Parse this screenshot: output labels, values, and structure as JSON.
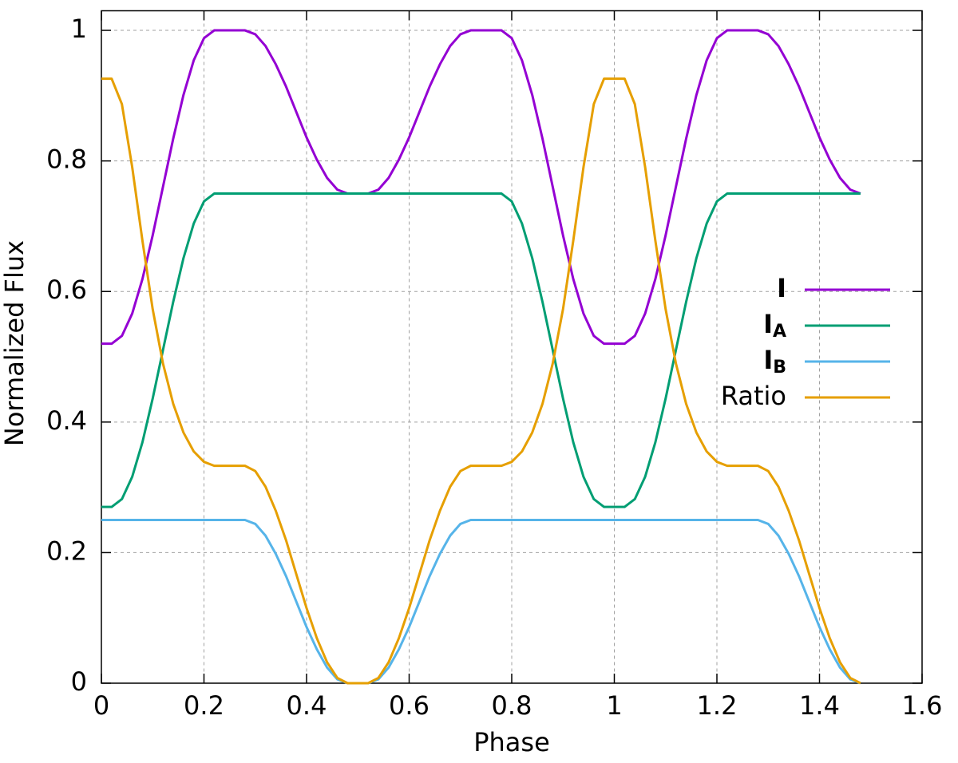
{
  "chart_data": {
    "type": "line",
    "xlabel": "Phase",
    "ylabel": "Normalized Flux",
    "xlim": [
      0,
      1.6
    ],
    "ylim": [
      0,
      1.03
    ],
    "xticks": [
      0,
      0.2,
      0.4,
      0.6,
      0.8,
      1,
      1.2,
      1.4,
      1.6
    ],
    "yticks": [
      0,
      0.2,
      0.4,
      0.6,
      0.8,
      1
    ],
    "grid": true,
    "legend": "right",
    "x": [
      0,
      0.02,
      0.04,
      0.06,
      0.08,
      0.1,
      0.12,
      0.14,
      0.16,
      0.18,
      0.2,
      0.22,
      0.24,
      0.26,
      0.28,
      0.3,
      0.32,
      0.34,
      0.36,
      0.38,
      0.4,
      0.42,
      0.44,
      0.46,
      0.48,
      0.5,
      0.52,
      0.54,
      0.56,
      0.58,
      0.6,
      0.62,
      0.64,
      0.66,
      0.68,
      0.7,
      0.72,
      0.74,
      0.76,
      0.78,
      0.8,
      0.82,
      0.84,
      0.86,
      0.88,
      0.9,
      0.92,
      0.94,
      0.96,
      0.98,
      1,
      1.02,
      1.04,
      1.06,
      1.08,
      1.1,
      1.12,
      1.14,
      1.16,
      1.18,
      1.2,
      1.22,
      1.24,
      1.26,
      1.28,
      1.3,
      1.32,
      1.34,
      1.36,
      1.38,
      1.4,
      1.42,
      1.44,
      1.46,
      1.48
    ],
    "series": [
      {
        "name": "I",
        "color": "#9400d3",
        "values": [
          0.52,
          0.52,
          0.532,
          0.566,
          0.619,
          0.686,
          0.76,
          0.834,
          0.901,
          0.954,
          0.988,
          1,
          1,
          1,
          1,
          0.994,
          0.976,
          0.948,
          0.914,
          0.875,
          0.836,
          0.802,
          0.774,
          0.756,
          0.75,
          0.75,
          0.75,
          0.756,
          0.774,
          0.802,
          0.836,
          0.875,
          0.914,
          0.948,
          0.976,
          0.994,
          1,
          1,
          1,
          1,
          0.988,
          0.954,
          0.901,
          0.834,
          0.76,
          0.686,
          0.619,
          0.566,
          0.532,
          0.52,
          0.52,
          0.52,
          0.532,
          0.566,
          0.619,
          0.686,
          0.76,
          0.834,
          0.901,
          0.954,
          0.988,
          1,
          1,
          1,
          1,
          0.994,
          0.976,
          0.948,
          0.914,
          0.875,
          0.836,
          0.802,
          0.774,
          0.756,
          0.75
        ]
      },
      {
        "name": "IA",
        "color": "#009e73",
        "values": [
          0.27,
          0.27,
          0.282,
          0.316,
          0.369,
          0.436,
          0.51,
          0.584,
          0.651,
          0.704,
          0.738,
          0.75,
          0.75,
          0.75,
          0.75,
          0.75,
          0.75,
          0.75,
          0.75,
          0.75,
          0.75,
          0.75,
          0.75,
          0.75,
          0.75,
          0.75,
          0.75,
          0.75,
          0.75,
          0.75,
          0.75,
          0.75,
          0.75,
          0.75,
          0.75,
          0.75,
          0.75,
          0.75,
          0.75,
          0.75,
          0.738,
          0.704,
          0.651,
          0.584,
          0.51,
          0.436,
          0.369,
          0.316,
          0.282,
          0.27,
          0.27,
          0.27,
          0.282,
          0.316,
          0.369,
          0.436,
          0.51,
          0.584,
          0.651,
          0.704,
          0.738,
          0.75,
          0.75,
          0.75,
          0.75,
          0.75,
          0.75,
          0.75,
          0.75,
          0.75,
          0.75,
          0.75,
          0.75,
          0.75,
          0.75
        ]
      },
      {
        "name": "IB",
        "color": "#56b4e9",
        "values": [
          0.25,
          0.25,
          0.25,
          0.25,
          0.25,
          0.25,
          0.25,
          0.25,
          0.25,
          0.25,
          0.25,
          0.25,
          0.25,
          0.25,
          0.25,
          0.244,
          0.226,
          0.198,
          0.164,
          0.125,
          0.086,
          0.052,
          0.024,
          0.006,
          0,
          0,
          0,
          0.006,
          0.024,
          0.052,
          0.086,
          0.125,
          0.164,
          0.198,
          0.226,
          0.244,
          0.25,
          0.25,
          0.25,
          0.25,
          0.25,
          0.25,
          0.25,
          0.25,
          0.25,
          0.25,
          0.25,
          0.25,
          0.25,
          0.25,
          0.25,
          0.25,
          0.25,
          0.25,
          0.25,
          0.25,
          0.25,
          0.25,
          0.25,
          0.25,
          0.25,
          0.25,
          0.25,
          0.25,
          0.25,
          0.244,
          0.226,
          0.198,
          0.164,
          0.125,
          0.086,
          0.052,
          0.024,
          0.006,
          0
        ]
      },
      {
        "name": "Ratio",
        "color": "#e69f00",
        "values": [
          0.926,
          0.926,
          0.887,
          0.791,
          0.678,
          0.573,
          0.49,
          0.428,
          0.384,
          0.355,
          0.339,
          0.333,
          0.333,
          0.333,
          0.333,
          0.325,
          0.301,
          0.264,
          0.219,
          0.167,
          0.115,
          0.069,
          0.032,
          0.008,
          0,
          0,
          0,
          0.008,
          0.032,
          0.069,
          0.115,
          0.167,
          0.219,
          0.264,
          0.301,
          0.325,
          0.333,
          0.333,
          0.333,
          0.333,
          0.339,
          0.355,
          0.384,
          0.428,
          0.49,
          0.573,
          0.678,
          0.791,
          0.887,
          0.926,
          0.926,
          0.926,
          0.887,
          0.791,
          0.678,
          0.573,
          0.49,
          0.428,
          0.384,
          0.355,
          0.339,
          0.333,
          0.333,
          0.333,
          0.333,
          0.325,
          0.301,
          0.264,
          0.219,
          0.167,
          0.115,
          0.069,
          0.032,
          0.008,
          0
        ]
      }
    ]
  }
}
